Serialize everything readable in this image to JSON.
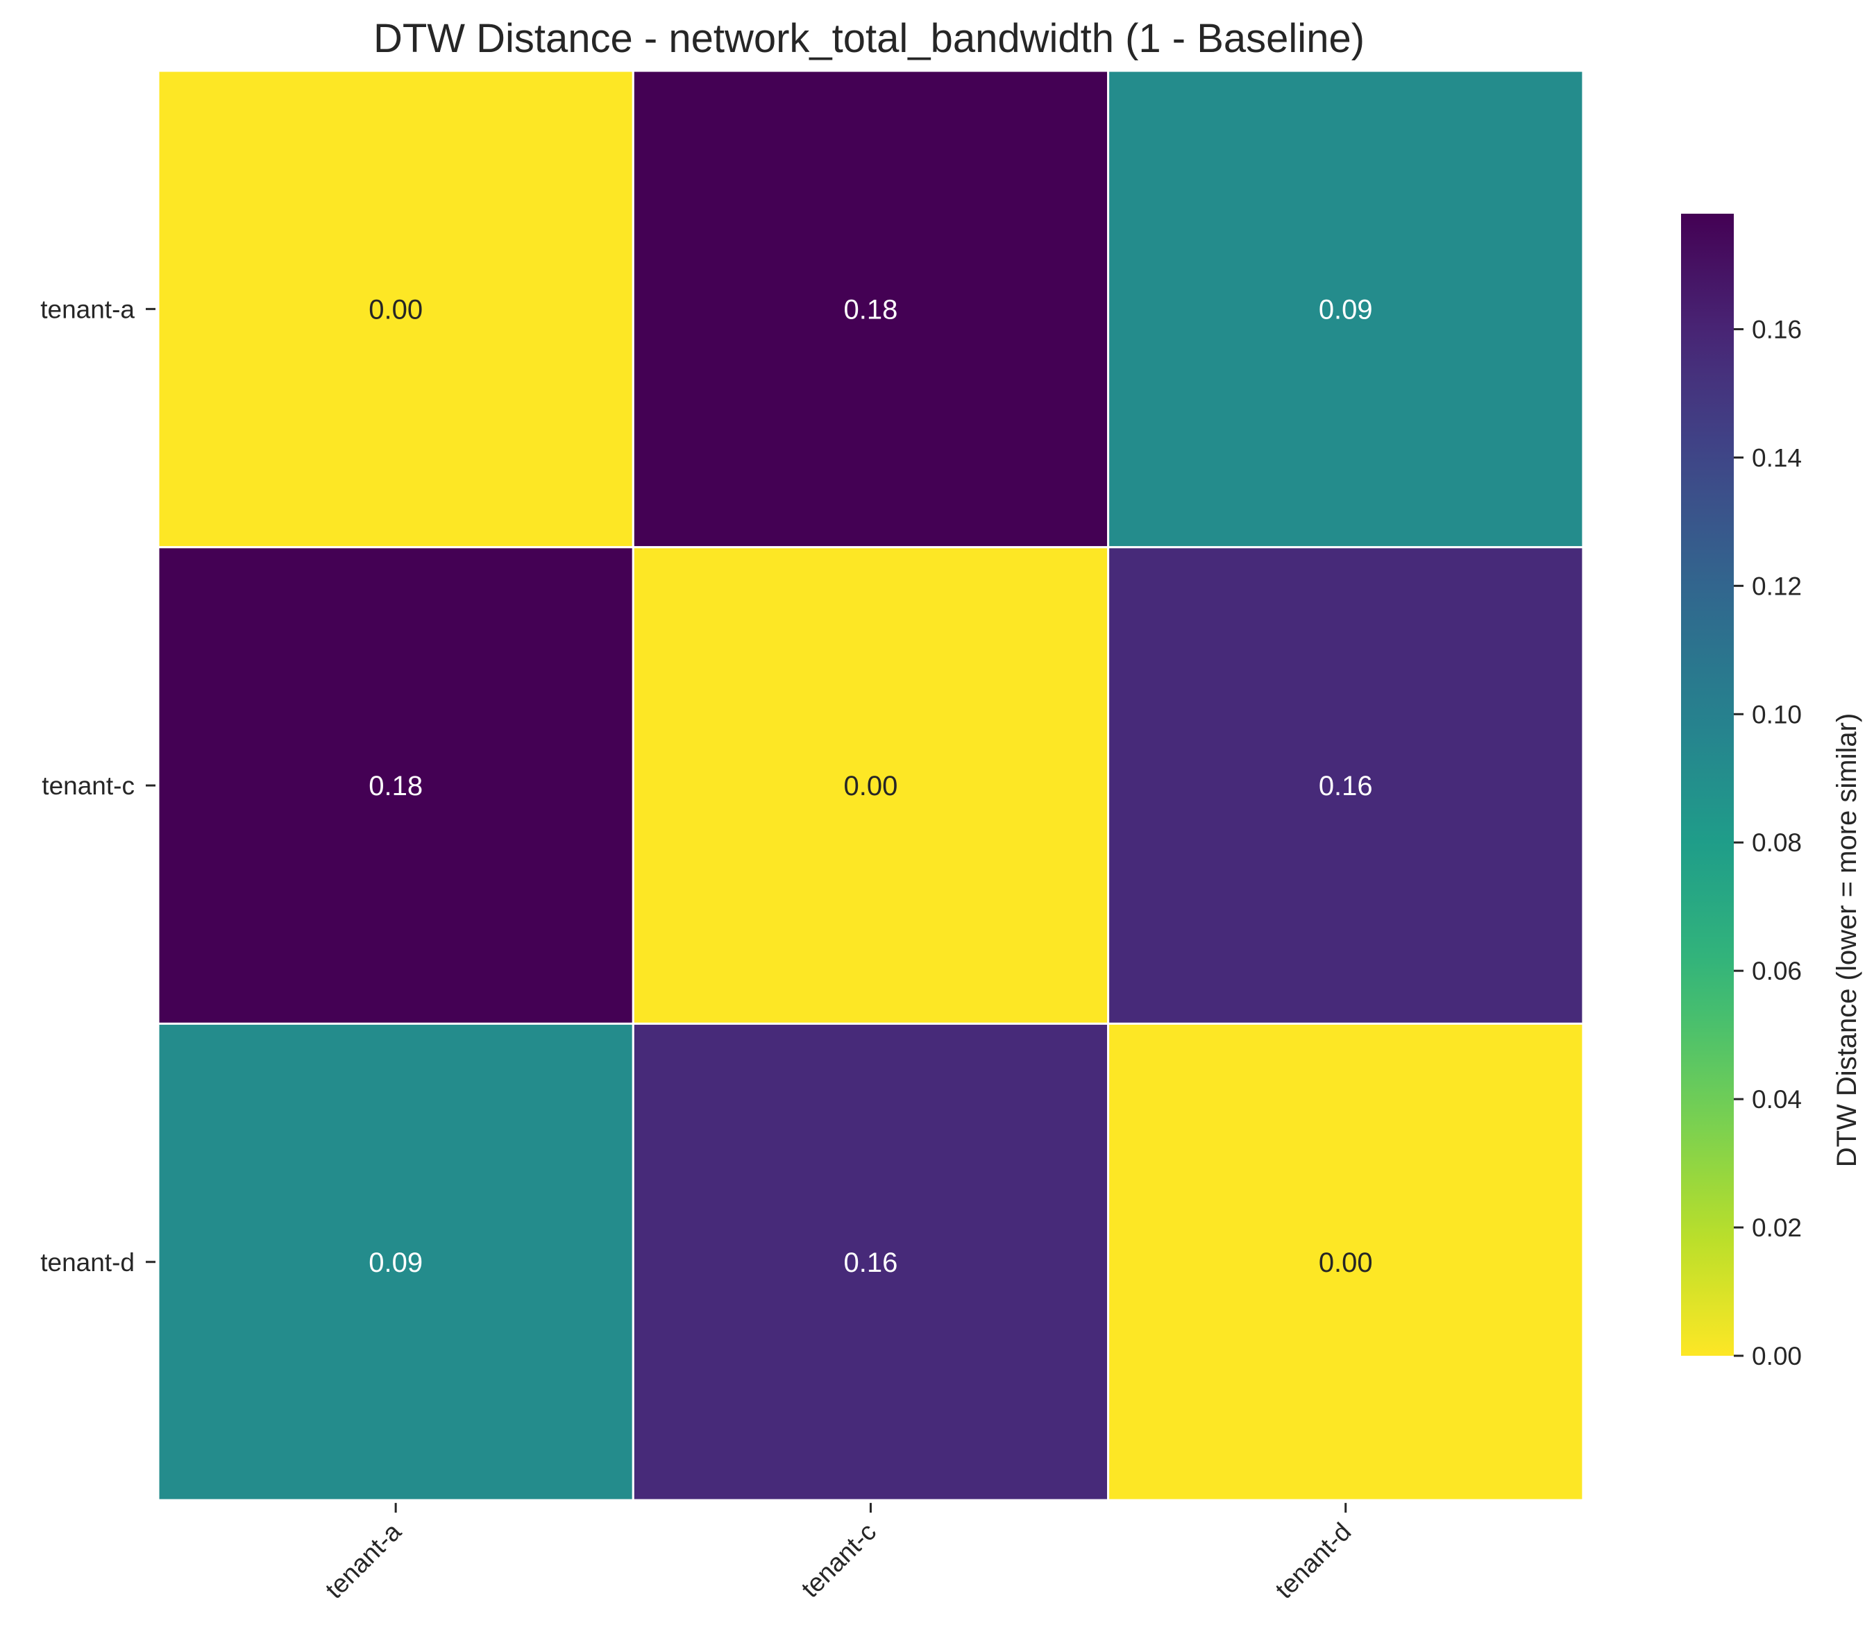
{
  "chart_data": {
    "type": "heatmap",
    "title": "DTW Distance - network_total_bandwidth (1 - Baseline)",
    "rows": [
      "tenant-a",
      "tenant-c",
      "tenant-d"
    ],
    "columns": [
      "tenant-a",
      "tenant-c",
      "tenant-d"
    ],
    "values": [
      [
        0.0,
        0.178,
        0.092
      ],
      [
        0.178,
        0.0,
        0.157
      ],
      [
        0.092,
        0.157,
        0.0
      ]
    ],
    "annotations": [
      [
        "0.00",
        "0.18",
        "0.09"
      ],
      [
        "0.18",
        "0.00",
        "0.16"
      ],
      [
        "0.09",
        "0.16",
        "0.00"
      ]
    ],
    "colormap": "viridis_r",
    "colorbar": {
      "label": "DTW Distance (lower = more similar)",
      "vmin": 0.0,
      "vmax": 0.178,
      "ticks": [
        "0.00",
        "0.02",
        "0.04",
        "0.06",
        "0.08",
        "0.10",
        "0.12",
        "0.14",
        "0.16"
      ]
    },
    "colors": {
      "cell_border": "#ffffff",
      "text_on_light": "#262626",
      "text_on_dark": "#ffffff"
    }
  }
}
